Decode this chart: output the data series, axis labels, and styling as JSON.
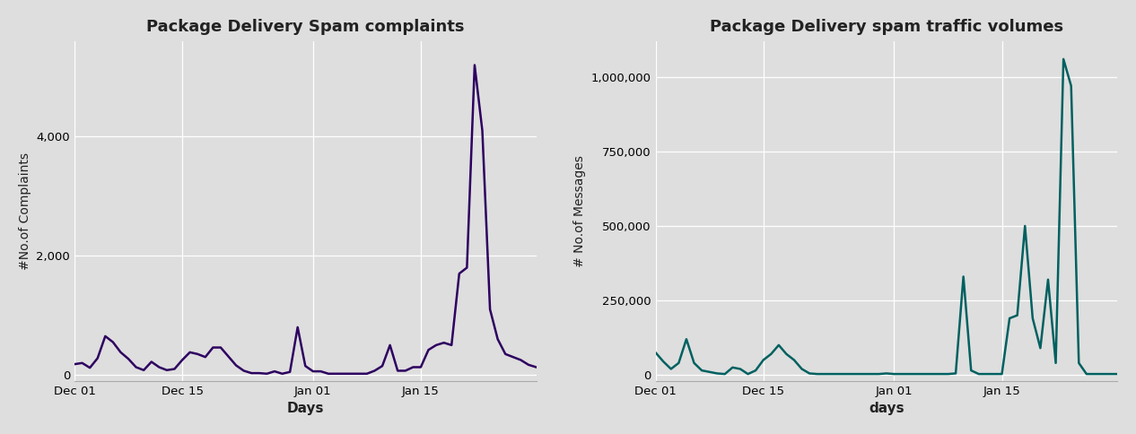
{
  "chart1": {
    "title": "Package Delivery Spam complaints",
    "xlabel": "Days",
    "ylabel": "#No.of Complaints",
    "line_color": "#2d0060",
    "yticks": [
      0,
      2000,
      4000
    ],
    "xtick_labels": [
      "Dec 01",
      "Dec 15",
      "Jan 01",
      "Jan 15"
    ],
    "background_color": "#dedede"
  },
  "chart2": {
    "title": "Package Delivery spam traffic volumes",
    "xlabel": "days",
    "ylabel": "# No.of Messages",
    "line_color": "#006060",
    "yticks": [
      0,
      250000,
      500000,
      750000,
      1000000
    ],
    "xtick_labels": [
      "Dec 01",
      "Dec 15",
      "Jan 01",
      "Jan 15"
    ],
    "background_color": "#dedede"
  },
  "complaints_x": [
    0,
    1,
    2,
    3,
    4,
    5,
    6,
    7,
    8,
    9,
    10,
    11,
    12,
    13,
    14,
    15,
    16,
    17,
    18,
    19,
    20,
    21,
    22,
    23,
    24,
    25,
    26,
    27,
    28,
    29,
    30,
    31,
    32,
    33,
    34,
    35,
    36,
    37,
    38,
    39,
    40,
    41,
    42,
    43,
    44,
    45,
    46,
    47,
    48,
    49,
    50,
    51,
    52,
    53,
    54,
    55,
    56,
    57,
    58,
    59,
    60
  ],
  "complaints_y": [
    180,
    200,
    120,
    280,
    650,
    550,
    380,
    270,
    130,
    80,
    220,
    130,
    80,
    100,
    250,
    380,
    350,
    300,
    460,
    460,
    310,
    160,
    70,
    30,
    30,
    20,
    60,
    20,
    50,
    800,
    150,
    60,
    60,
    20,
    20,
    20,
    20,
    20,
    20,
    70,
    150,
    500,
    70,
    70,
    130,
    130,
    420,
    500,
    540,
    500,
    1700,
    1800,
    5200,
    4100,
    1100,
    600,
    350,
    300,
    250,
    170,
    130
  ],
  "traffic_x": [
    0,
    1,
    2,
    3,
    4,
    5,
    6,
    7,
    8,
    9,
    10,
    11,
    12,
    13,
    14,
    15,
    16,
    17,
    18,
    19,
    20,
    21,
    22,
    23,
    24,
    25,
    26,
    27,
    28,
    29,
    30,
    31,
    32,
    33,
    34,
    35,
    36,
    37,
    38,
    39,
    40,
    41,
    42,
    43,
    44,
    45,
    46,
    47,
    48,
    49,
    50,
    51,
    52,
    53,
    54,
    55,
    56,
    57,
    58,
    59,
    60
  ],
  "traffic_y": [
    75000,
    45000,
    20000,
    40000,
    120000,
    40000,
    15000,
    10000,
    5000,
    3000,
    25000,
    20000,
    3000,
    15000,
    50000,
    70000,
    100000,
    70000,
    50000,
    20000,
    5000,
    3000,
    3000,
    3000,
    3000,
    3000,
    3000,
    3000,
    3000,
    3000,
    5000,
    3000,
    3000,
    3000,
    3000,
    3000,
    3000,
    3000,
    3000,
    5000,
    330000,
    15000,
    3000,
    3000,
    3000,
    3000,
    190000,
    200000,
    500000,
    190000,
    90000,
    320000,
    40000,
    1060000,
    970000,
    40000,
    3000,
    3000,
    3000,
    3000,
    3000
  ],
  "xtick_positions_complaints": [
    0,
    14,
    31,
    45
  ],
  "xtick_positions_traffic": [
    0,
    14,
    31,
    45
  ]
}
